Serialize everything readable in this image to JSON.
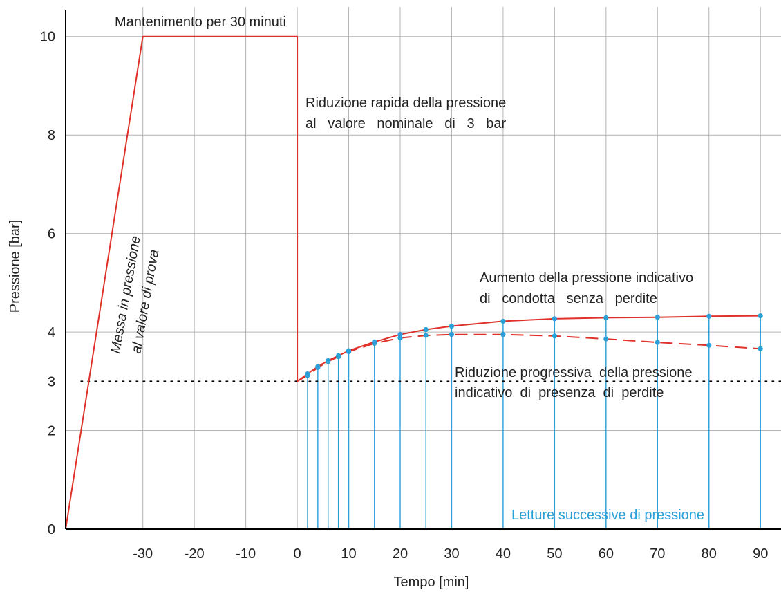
{
  "chart_data": {
    "type": "line",
    "xlabel": "Tempo [min]",
    "ylabel": "Pressione [bar]",
    "xlim": [
      -45,
      94
    ],
    "ylim": [
      0,
      10.6
    ],
    "xticks": [
      -30,
      -20,
      -10,
      0,
      10,
      20,
      30,
      40,
      50,
      60,
      70,
      80,
      90
    ],
    "yticks": [
      0,
      2,
      3,
      4,
      6,
      8,
      10
    ],
    "grid": true,
    "series": [
      {
        "key": "test_cycle",
        "style": "solid",
        "color": "#e0302a",
        "points": [
          [
            -45,
            0
          ],
          [
            -30,
            10
          ],
          [
            0,
            10
          ],
          [
            0,
            3
          ],
          [
            2,
            3.15
          ],
          [
            4,
            3.3
          ],
          [
            6,
            3.42
          ],
          [
            8,
            3.52
          ],
          [
            10,
            3.62
          ],
          [
            15,
            3.8
          ],
          [
            20,
            3.95
          ],
          [
            25,
            4.05
          ],
          [
            30,
            4.12
          ],
          [
            40,
            4.22
          ],
          [
            50,
            4.27
          ],
          [
            60,
            4.29
          ],
          [
            70,
            4.3
          ],
          [
            80,
            4.32
          ],
          [
            90,
            4.33
          ]
        ]
      },
      {
        "key": "leak_branch",
        "style": "dashed",
        "color": "#e0302a",
        "points": [
          [
            0,
            3
          ],
          [
            2,
            3.12
          ],
          [
            4,
            3.28
          ],
          [
            6,
            3.4
          ],
          [
            8,
            3.5
          ],
          [
            10,
            3.6
          ],
          [
            15,
            3.77
          ],
          [
            20,
            3.88
          ],
          [
            25,
            3.93
          ],
          [
            30,
            3.95
          ],
          [
            40,
            3.95
          ],
          [
            50,
            3.92
          ],
          [
            60,
            3.86
          ],
          [
            70,
            3.79
          ],
          [
            80,
            3.73
          ],
          [
            90,
            3.66
          ]
        ]
      }
    ],
    "readings_x": [
      2,
      4,
      6,
      8,
      10,
      15,
      20,
      25,
      30,
      40,
      50,
      60,
      70,
      80,
      90
    ],
    "nominal_line": {
      "y": 3,
      "x_from": -42,
      "x_to": 94,
      "style": "dotted"
    },
    "annotations": {
      "hold": "Mantenimento per 30 minuti",
      "pressurize_1": "Messa in pressione",
      "pressurize_2": "al  valore  di  prova",
      "drop_1": "Riduzione rapida della pressione",
      "drop_2": "al   valore   nominale   di   3   bar",
      "increase_1": "Aumento della pressione indicativo",
      "increase_2": "di   condotta   senza   perdite",
      "decrease_1": "Riduzione progressiva  della pressione",
      "decrease_2": "indicativo  di  presenza  di  perdite",
      "readings": "Letture successive di pressione"
    },
    "colors": {
      "curve": "#e0302a",
      "reading": "#2a9fd8",
      "grid": "#b4b4b4",
      "axis": "#000000"
    }
  }
}
